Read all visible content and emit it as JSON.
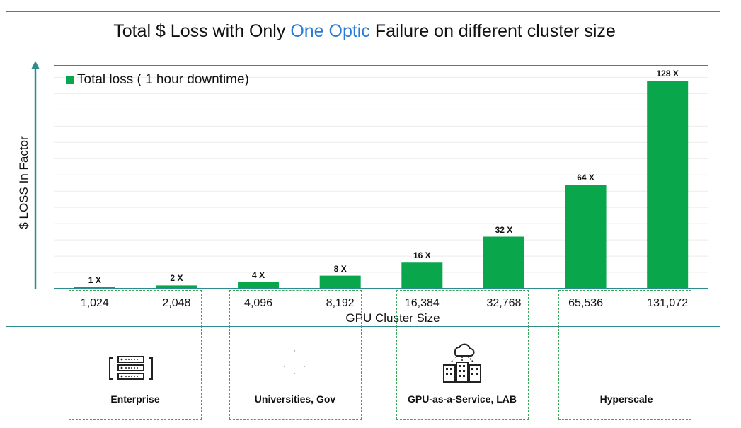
{
  "title": {
    "prefix": "Total $ Loss with Only ",
    "highlight": "One Optic",
    "suffix": " Failure on different cluster size"
  },
  "colors": {
    "bar": "#0aa64b",
    "frame": "#2f8b8f",
    "highlight": "#2b7bd6",
    "segment_border": "#3aa85a"
  },
  "chart_data": {
    "type": "bar",
    "title": "Total $ Loss with Only One Optic Failure on different cluster size",
    "xlabel": "GPU Cluster Size",
    "ylabel": "$  LOSS In Factor",
    "categories": [
      "1,024",
      "2,048",
      "4,096",
      "8,192",
      "16,384",
      "32,768",
      "65,536",
      "131,072"
    ],
    "series": [
      {
        "name": "Total loss ( 1 hour downtime)",
        "values": [
          1,
          2,
          4,
          8,
          16,
          32,
          64,
          128
        ]
      }
    ],
    "data_labels": [
      "1 X",
      "2 X",
      "4 X",
      "8 X",
      "16 X",
      "32 X",
      "64 X",
      "128 X"
    ],
    "ylim": [
      0,
      130
    ],
    "grid": true,
    "legend": "top-left"
  },
  "segments": [
    {
      "label": "Enterprise",
      "icon": "server-rack-icon"
    },
    {
      "label": "Universities, Gov",
      "icon": "network-dots-icon"
    },
    {
      "label": "GPU-as-a-Service, LAB",
      "icon": "cloud-buildings-icon"
    },
    {
      "label": "Hyperscale",
      "icon": ""
    }
  ]
}
